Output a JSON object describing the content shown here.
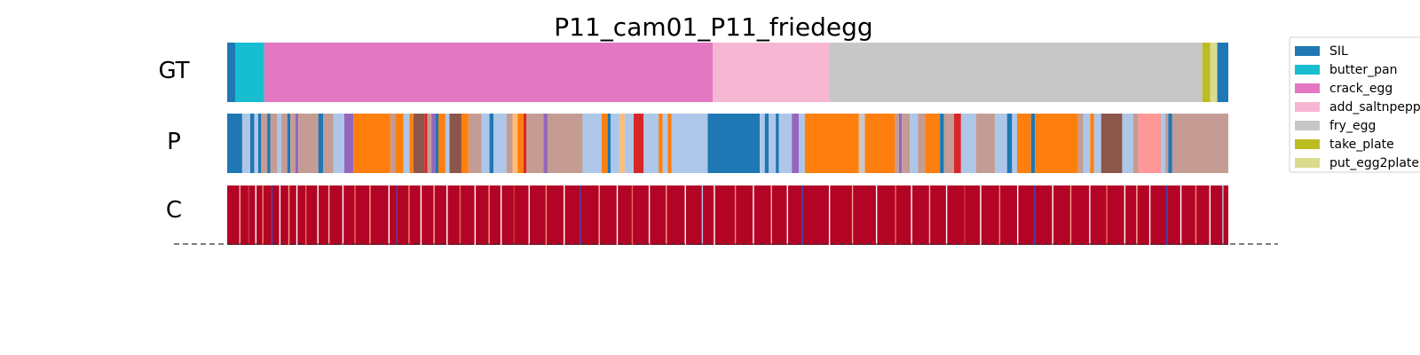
{
  "chart_data": {
    "type": "heatmap",
    "title": "P11_cam01_P11_friedegg",
    "rows": [
      "GT",
      "P",
      "C"
    ],
    "legend": {
      "placement": "right",
      "entries": [
        {
          "label": "SIL",
          "color": "#1f77b4"
        },
        {
          "label": "butter_pan",
          "color": "#17becf"
        },
        {
          "label": "crack_egg",
          "color": "#e377c2"
        },
        {
          "label": "add_saltnpepper",
          "color": "#f7b6d2"
        },
        {
          "label": "fry_egg",
          "color": "#c7c7c7"
        },
        {
          "label": "take_plate",
          "color": "#bcbd22"
        },
        {
          "label": "put_egg2plate",
          "color": "#dbdb8d"
        }
      ]
    },
    "gt_segments": [
      {
        "label": "SIL",
        "start": 0.0,
        "end": 0.008
      },
      {
        "label": "butter_pan",
        "start": 0.008,
        "end": 0.037
      },
      {
        "label": "crack_egg",
        "start": 0.037,
        "end": 0.485
      },
      {
        "label": "add_saltnpepper",
        "start": 0.485,
        "end": 0.601
      },
      {
        "label": "fry_egg",
        "start": 0.601,
        "end": 0.974
      },
      {
        "label": "take_plate",
        "start": 0.974,
        "end": 0.982
      },
      {
        "label": "put_egg2plate",
        "start": 0.982,
        "end": 0.989
      },
      {
        "label": "SIL",
        "start": 0.989,
        "end": 1.0
      }
    ],
    "p_segments": [
      {
        "color": "#1f77b4",
        "start": 0.0,
        "end": 0.015
      },
      {
        "color": "#aec7e8",
        "start": 0.015,
        "end": 0.023
      },
      {
        "color": "#1f77b4",
        "start": 0.023,
        "end": 0.027
      },
      {
        "color": "#aec7e8",
        "start": 0.027,
        "end": 0.031
      },
      {
        "color": "#1f77b4",
        "start": 0.031,
        "end": 0.034
      },
      {
        "color": "#c49c94",
        "start": 0.034,
        "end": 0.04
      },
      {
        "color": "#1f77b4",
        "start": 0.04,
        "end": 0.043
      },
      {
        "color": "#c49c94",
        "start": 0.043,
        "end": 0.05
      },
      {
        "color": "#aec7e8",
        "start": 0.05,
        "end": 0.054
      },
      {
        "color": "#c49c94",
        "start": 0.054,
        "end": 0.06
      },
      {
        "color": "#1f77b4",
        "start": 0.06,
        "end": 0.063
      },
      {
        "color": "#c49c94",
        "start": 0.063,
        "end": 0.068
      },
      {
        "color": "#9467bd",
        "start": 0.068,
        "end": 0.071
      },
      {
        "color": "#c49c94",
        "start": 0.071,
        "end": 0.091
      },
      {
        "color": "#1f77b4",
        "start": 0.091,
        "end": 0.096
      },
      {
        "color": "#c49c94",
        "start": 0.096,
        "end": 0.106
      },
      {
        "color": "#aec7e8",
        "start": 0.106,
        "end": 0.117
      },
      {
        "color": "#9467bd",
        "start": 0.117,
        "end": 0.126
      },
      {
        "color": "#ff7f0e",
        "start": 0.126,
        "end": 0.163
      },
      {
        "color": "#c49c94",
        "start": 0.163,
        "end": 0.168
      },
      {
        "color": "#ff7f0e",
        "start": 0.168,
        "end": 0.176
      },
      {
        "color": "#aec7e8",
        "start": 0.176,
        "end": 0.182
      },
      {
        "color": "#ff7f0e",
        "start": 0.182,
        "end": 0.186
      },
      {
        "color": "#8c564b",
        "start": 0.186,
        "end": 0.197
      },
      {
        "color": "#d62728",
        "start": 0.197,
        "end": 0.2
      },
      {
        "color": "#c49c94",
        "start": 0.2,
        "end": 0.204
      },
      {
        "color": "#9467bd",
        "start": 0.204,
        "end": 0.208
      },
      {
        "color": "#1f77b4",
        "start": 0.208,
        "end": 0.211
      },
      {
        "color": "#ff7f0e",
        "start": 0.211,
        "end": 0.218
      },
      {
        "color": "#aec7e8",
        "start": 0.218,
        "end": 0.222
      },
      {
        "color": "#8c564b",
        "start": 0.222,
        "end": 0.234
      },
      {
        "color": "#ff7f0e",
        "start": 0.234,
        "end": 0.241
      },
      {
        "color": "#c49c94",
        "start": 0.241,
        "end": 0.254
      },
      {
        "color": "#aec7e8",
        "start": 0.254,
        "end": 0.262
      },
      {
        "color": "#1f77b4",
        "start": 0.262,
        "end": 0.266
      },
      {
        "color": "#aec7e8",
        "start": 0.266,
        "end": 0.279
      },
      {
        "color": "#c49c94",
        "start": 0.279,
        "end": 0.285
      },
      {
        "color": "#ffbb78",
        "start": 0.285,
        "end": 0.29
      },
      {
        "color": "#ff7f0e",
        "start": 0.29,
        "end": 0.296
      },
      {
        "color": "#d62728",
        "start": 0.296,
        "end": 0.299
      },
      {
        "color": "#c49c94",
        "start": 0.299,
        "end": 0.316
      },
      {
        "color": "#9467bd",
        "start": 0.316,
        "end": 0.32
      },
      {
        "color": "#c49c94",
        "start": 0.32,
        "end": 0.355
      },
      {
        "color": "#aec7e8",
        "start": 0.355,
        "end": 0.374
      },
      {
        "color": "#ff7f0e",
        "start": 0.374,
        "end": 0.38
      },
      {
        "color": "#1f77b4",
        "start": 0.38,
        "end": 0.383
      },
      {
        "color": "#aec7e8",
        "start": 0.383,
        "end": 0.392
      },
      {
        "color": "#ffbb78",
        "start": 0.392,
        "end": 0.397
      },
      {
        "color": "#aec7e8",
        "start": 0.397,
        "end": 0.406
      },
      {
        "color": "#d62728",
        "start": 0.406,
        "end": 0.416
      },
      {
        "color": "#aec7e8",
        "start": 0.416,
        "end": 0.431
      },
      {
        "color": "#ff7f0e",
        "start": 0.431,
        "end": 0.435
      },
      {
        "color": "#aec7e8",
        "start": 0.435,
        "end": 0.44
      },
      {
        "color": "#ff7f0e",
        "start": 0.44,
        "end": 0.444
      },
      {
        "color": "#aec7e8",
        "start": 0.444,
        "end": 0.48
      },
      {
        "color": "#1f77b4",
        "start": 0.48,
        "end": 0.532
      },
      {
        "color": "#aec7e8",
        "start": 0.532,
        "end": 0.537
      },
      {
        "color": "#1f77b4",
        "start": 0.537,
        "end": 0.541
      },
      {
        "color": "#aec7e8",
        "start": 0.541,
        "end": 0.548
      },
      {
        "color": "#1f77b4",
        "start": 0.548,
        "end": 0.551
      },
      {
        "color": "#aec7e8",
        "start": 0.551,
        "end": 0.564
      },
      {
        "color": "#9467bd",
        "start": 0.564,
        "end": 0.571
      },
      {
        "color": "#aec7e8",
        "start": 0.571,
        "end": 0.577
      },
      {
        "color": "#ff7f0e",
        "start": 0.577,
        "end": 0.631
      },
      {
        "color": "#c7c7c7",
        "start": 0.631,
        "end": 0.637
      },
      {
        "color": "#ff7f0e",
        "start": 0.637,
        "end": 0.667
      },
      {
        "color": "#c49c94",
        "start": 0.667,
        "end": 0.671
      },
      {
        "color": "#9467bd",
        "start": 0.671,
        "end": 0.674
      },
      {
        "color": "#c49c94",
        "start": 0.674,
        "end": 0.682
      },
      {
        "color": "#aec7e8",
        "start": 0.682,
        "end": 0.69
      },
      {
        "color": "#c49c94",
        "start": 0.69,
        "end": 0.697
      },
      {
        "color": "#ff7f0e",
        "start": 0.697,
        "end": 0.712
      },
      {
        "color": "#1f77b4",
        "start": 0.712,
        "end": 0.716
      },
      {
        "color": "#c49c94",
        "start": 0.716,
        "end": 0.726
      },
      {
        "color": "#d62728",
        "start": 0.726,
        "end": 0.733
      },
      {
        "color": "#aec7e8",
        "start": 0.733,
        "end": 0.748
      },
      {
        "color": "#c49c94",
        "start": 0.748,
        "end": 0.767
      },
      {
        "color": "#aec7e8",
        "start": 0.767,
        "end": 0.779
      },
      {
        "color": "#1f77b4",
        "start": 0.779,
        "end": 0.784
      },
      {
        "color": "#aec7e8",
        "start": 0.784,
        "end": 0.789
      },
      {
        "color": "#ff7f0e",
        "start": 0.789,
        "end": 0.803
      },
      {
        "color": "#1f77b4",
        "start": 0.803,
        "end": 0.807
      },
      {
        "color": "#ff7f0e",
        "start": 0.807,
        "end": 0.85
      },
      {
        "color": "#c49c94",
        "start": 0.85,
        "end": 0.855
      },
      {
        "color": "#aec7e8",
        "start": 0.855,
        "end": 0.862
      },
      {
        "color": "#ff7f0e",
        "start": 0.862,
        "end": 0.866
      },
      {
        "color": "#aec7e8",
        "start": 0.866,
        "end": 0.873
      },
      {
        "color": "#8c564b",
        "start": 0.873,
        "end": 0.894
      },
      {
        "color": "#aec7e8",
        "start": 0.894,
        "end": 0.905
      },
      {
        "color": "#c49c94",
        "start": 0.905,
        "end": 0.91
      },
      {
        "color": "#ff9896",
        "start": 0.91,
        "end": 0.933
      },
      {
        "color": "#aec7e8",
        "start": 0.933,
        "end": 0.937
      },
      {
        "color": "#c49c94",
        "start": 0.937,
        "end": 0.94
      },
      {
        "color": "#1f77b4",
        "start": 0.94,
        "end": 0.944
      },
      {
        "color": "#c49c94",
        "start": 0.944,
        "end": 1.0
      }
    ],
    "c_row": {
      "base_color": "#b40426",
      "stripes": [
        {
          "pos": 0.012,
          "color": "#f7b89c"
        },
        {
          "pos": 0.021,
          "color": "#cc3a35"
        },
        {
          "pos": 0.028,
          "color": "#ffffff"
        },
        {
          "pos": 0.035,
          "color": "#f08a6c"
        },
        {
          "pos": 0.044,
          "color": "#3b4cc0"
        },
        {
          "pos": 0.052,
          "color": "#ffffff"
        },
        {
          "pos": 0.061,
          "color": "#f4a582"
        },
        {
          "pos": 0.069,
          "color": "#ffffff"
        },
        {
          "pos": 0.078,
          "color": "#e46e56"
        },
        {
          "pos": 0.09,
          "color": "#ffffff"
        },
        {
          "pos": 0.101,
          "color": "#f7b89c"
        },
        {
          "pos": 0.115,
          "color": "#ffffff"
        },
        {
          "pos": 0.127,
          "color": "#e46e56"
        },
        {
          "pos": 0.142,
          "color": "#f4a582"
        },
        {
          "pos": 0.161,
          "color": "#ffffff"
        },
        {
          "pos": 0.169,
          "color": "#3b4cc0"
        },
        {
          "pos": 0.181,
          "color": "#f08a6c"
        },
        {
          "pos": 0.193,
          "color": "#ffffff"
        },
        {
          "pos": 0.206,
          "color": "#f7b89c"
        },
        {
          "pos": 0.219,
          "color": "#ffffff"
        },
        {
          "pos": 0.232,
          "color": "#e46e56"
        },
        {
          "pos": 0.247,
          "color": "#ffffff"
        },
        {
          "pos": 0.261,
          "color": "#f4a582"
        },
        {
          "pos": 0.273,
          "color": "#ffffff"
        },
        {
          "pos": 0.286,
          "color": "#cc3a35"
        },
        {
          "pos": 0.301,
          "color": "#ffffff"
        },
        {
          "pos": 0.318,
          "color": "#f08a6c"
        },
        {
          "pos": 0.336,
          "color": "#ffffff"
        },
        {
          "pos": 0.352,
          "color": "#3b4cc0"
        },
        {
          "pos": 0.371,
          "color": "#f7b89c"
        },
        {
          "pos": 0.389,
          "color": "#ffffff"
        },
        {
          "pos": 0.404,
          "color": "#e46e56"
        },
        {
          "pos": 0.421,
          "color": "#ffffff"
        },
        {
          "pos": 0.438,
          "color": "#f4a582"
        },
        {
          "pos": 0.457,
          "color": "#ffffff"
        },
        {
          "pos": 0.474,
          "color": "#aec7e8"
        },
        {
          "pos": 0.486,
          "color": "#ffffff"
        },
        {
          "pos": 0.507,
          "color": "#f08a6c"
        },
        {
          "pos": 0.525,
          "color": "#ffffff"
        },
        {
          "pos": 0.543,
          "color": "#f7b89c"
        },
        {
          "pos": 0.559,
          "color": "#ffffff"
        },
        {
          "pos": 0.574,
          "color": "#3b4cc0"
        },
        {
          "pos": 0.601,
          "color": "#ffffff"
        },
        {
          "pos": 0.624,
          "color": "#f4a582"
        },
        {
          "pos": 0.648,
          "color": "#ffffff"
        },
        {
          "pos": 0.667,
          "color": "#e46e56"
        },
        {
          "pos": 0.683,
          "color": "#ffffff"
        },
        {
          "pos": 0.701,
          "color": "#f7b89c"
        },
        {
          "pos": 0.718,
          "color": "#ffffff"
        },
        {
          "pos": 0.736,
          "color": "#cc3a35"
        },
        {
          "pos": 0.752,
          "color": "#ffffff"
        },
        {
          "pos": 0.771,
          "color": "#f08a6c"
        },
        {
          "pos": 0.789,
          "color": "#ffffff"
        },
        {
          "pos": 0.806,
          "color": "#3b4cc0"
        },
        {
          "pos": 0.824,
          "color": "#ffffff"
        },
        {
          "pos": 0.842,
          "color": "#f4a582"
        },
        {
          "pos": 0.861,
          "color": "#ffffff"
        },
        {
          "pos": 0.878,
          "color": "#e46e56"
        },
        {
          "pos": 0.896,
          "color": "#ffffff"
        },
        {
          "pos": 0.908,
          "color": "#f7b89c"
        },
        {
          "pos": 0.921,
          "color": "#ffffff"
        },
        {
          "pos": 0.938,
          "color": "#3b4cc0"
        },
        {
          "pos": 0.952,
          "color": "#ffffff"
        },
        {
          "pos": 0.967,
          "color": "#f08a6c"
        },
        {
          "pos": 0.981,
          "color": "#ffffff"
        },
        {
          "pos": 0.994,
          "color": "#aec7e8"
        }
      ]
    }
  }
}
